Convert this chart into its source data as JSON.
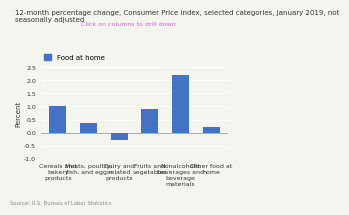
{
  "title": "12-month percentage change, Consumer Price Index, selected categories, January 2019, not\nseasonally adjusted",
  "subtitle": "Click on columns to drill down",
  "legend_label": "Food at home",
  "legend_color": "#4472c4",
  "ylabel": "Percent",
  "source": "Source: U.S. Bureau of Labor Statistics",
  "categories": [
    "Cereals and\nbakery\nproducts",
    "Meats, poultry,\nfish, and eggs",
    "Dairy and\nrelated\nproducts",
    "Fruits and\nvegetables",
    "Nonalcoholic\nbeverages and\nbeverage\nmaterials",
    "Other food at\nhome"
  ],
  "values": [
    1.0,
    0.35,
    -0.3,
    0.9,
    2.2,
    0.2
  ],
  "bar_color": "#4472c4",
  "ylim": [
    -1.0,
    2.5
  ],
  "yticks": [
    -1.0,
    -0.5,
    0.0,
    0.5,
    1.0,
    1.5,
    2.0,
    2.5
  ],
  "title_fontsize": 5.0,
  "subtitle_fontsize": 4.5,
  "subtitle_color": "#cc66cc",
  "ylabel_fontsize": 5.0,
  "tick_fontsize": 4.5,
  "legend_fontsize": 5.0,
  "source_fontsize": 3.8,
  "background_color": "#f5f5f0"
}
